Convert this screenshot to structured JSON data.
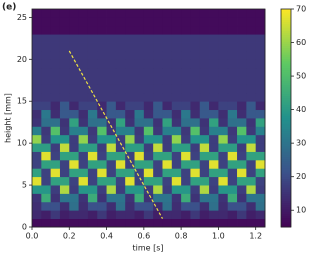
{
  "chart_data": {
    "type": "heatmap",
    "panel_label": "(e)",
    "xlabel": "time [s]",
    "ylabel": "height [mm]",
    "xlim": [
      0,
      1.25
    ],
    "ylim": [
      0,
      26
    ],
    "xticks": [
      {
        "value": 0,
        "label": "0.0"
      },
      {
        "value": 0.2,
        "label": "0.2"
      },
      {
        "value": 0.4,
        "label": "0.4"
      },
      {
        "value": 0.6,
        "label": "0.6"
      },
      {
        "value": 0.8,
        "label": "0.8"
      },
      {
        "value": 1.0,
        "label": "1.0"
      },
      {
        "value": 1.2,
        "label": "1.2"
      }
    ],
    "yticks": [
      0,
      5,
      10,
      15,
      20,
      25
    ],
    "clim": [
      5,
      70
    ],
    "cticks": [
      10,
      20,
      30,
      40,
      50,
      60,
      70
    ],
    "colormap": [
      "#440154",
      "#3b528b",
      "#21918c",
      "#5ec962",
      "#fde725"
    ],
    "xbins": [
      0,
      0.05,
      0.1,
      0.15,
      0.2,
      0.25,
      0.3,
      0.35,
      0.4,
      0.45,
      0.5,
      0.55,
      0.6,
      0.65,
      0.7,
      0.75,
      0.8,
      0.85,
      0.9,
      0.95,
      1.0,
      1.05,
      1.1,
      1.15,
      1.2,
      1.25
    ],
    "ybins": [
      0,
      1,
      2,
      3,
      4,
      5,
      6,
      7,
      8,
      9,
      10,
      11,
      12,
      13,
      14,
      15,
      16,
      17,
      18,
      19,
      20,
      21,
      22,
      23,
      24,
      25,
      26
    ],
    "z": [
      [
        7,
        7,
        7,
        7,
        7,
        7,
        7,
        7,
        7,
        7,
        7,
        7,
        7,
        7,
        7,
        7,
        7,
        7,
        7,
        7,
        7,
        7,
        7,
        7,
        7
      ],
      [
        13,
        11,
        16,
        11,
        13,
        13,
        11,
        16,
        11,
        13,
        13,
        11,
        16,
        11,
        13,
        13,
        11,
        16,
        11,
        13,
        13,
        11,
        16,
        11,
        13
      ],
      [
        14,
        21,
        21,
        14,
        29,
        14,
        21,
        21,
        14,
        29,
        14,
        21,
        21,
        14,
        29,
        14,
        21,
        21,
        14,
        29,
        14,
        21,
        21,
        14,
        29
      ],
      [
        15,
        45,
        15,
        30,
        30,
        15,
        45,
        15,
        30,
        30,
        15,
        45,
        15,
        30,
        30,
        15,
        45,
        15,
        30,
        30,
        15,
        45,
        15,
        30,
        30
      ],
      [
        39,
        39,
        17,
        62,
        17,
        39,
        39,
        17,
        62,
        17,
        39,
        39,
        17,
        62,
        17,
        39,
        39,
        17,
        62,
        17,
        39,
        39,
        17,
        62,
        17
      ],
      [
        67,
        18,
        42,
        42,
        18,
        67,
        18,
        42,
        42,
        18,
        67,
        18,
        42,
        42,
        18,
        67,
        18,
        42,
        42,
        18,
        67,
        18,
        42,
        42,
        18
      ],
      [
        42,
        18,
        67,
        18,
        42,
        42,
        18,
        67,
        18,
        42,
        42,
        18,
        67,
        18,
        42,
        42,
        18,
        67,
        18,
        42,
        42,
        18,
        67,
        18,
        42
      ],
      [
        18,
        42,
        42,
        18,
        67,
        18,
        42,
        42,
        18,
        67,
        18,
        42,
        42,
        18,
        67,
        18,
        42,
        42,
        18,
        67,
        18,
        42,
        42,
        18,
        67
      ],
      [
        18,
        67,
        18,
        42,
        42,
        18,
        67,
        18,
        42,
        42,
        18,
        67,
        18,
        42,
        42,
        18,
        67,
        18,
        42,
        42,
        18,
        67,
        18,
        42,
        42
      ],
      [
        41,
        41,
        17,
        64,
        17,
        41,
        41,
        17,
        64,
        17,
        41,
        41,
        17,
        64,
        17,
        41,
        41,
        17,
        64,
        17,
        41,
        41,
        17,
        64,
        17
      ],
      [
        59,
        17,
        38,
        38,
        17,
        59,
        17,
        38,
        38,
        17,
        59,
        17,
        38,
        38,
        17,
        59,
        17,
        38,
        38,
        17,
        59,
        17,
        38,
        38,
        17
      ],
      [
        33,
        16,
        51,
        16,
        33,
        33,
        16,
        51,
        16,
        33,
        33,
        16,
        51,
        16,
        33,
        33,
        16,
        51,
        16,
        33,
        33,
        16,
        51,
        16,
        33
      ],
      [
        15,
        29,
        29,
        15,
        42,
        15,
        29,
        29,
        15,
        42,
        15,
        29,
        29,
        15,
        42,
        15,
        29,
        29,
        15,
        42,
        15,
        29,
        29,
        15,
        42
      ],
      [
        14,
        31,
        14,
        23,
        23,
        14,
        31,
        14,
        23,
        23,
        14,
        31,
        14,
        23,
        23,
        14,
        31,
        14,
        23,
        23,
        14,
        31,
        14,
        23,
        23
      ],
      [
        18,
        18,
        13,
        23,
        13,
        18,
        18,
        13,
        23,
        13,
        18,
        18,
        13,
        23,
        13,
        18,
        18,
        13,
        23,
        13,
        18,
        18,
        13,
        23,
        13
      ],
      [
        16,
        16,
        16,
        16,
        16,
        16,
        16,
        16,
        16,
        16,
        16,
        16,
        16,
        16,
        16,
        16,
        16,
        16,
        16,
        16,
        16,
        16,
        16,
        16,
        16
      ],
      [
        16,
        16,
        16,
        16,
        16,
        16,
        16,
        16,
        16,
        16,
        16,
        16,
        16,
        16,
        16,
        16,
        16,
        16,
        16,
        16,
        16,
        16,
        16,
        16,
        16
      ],
      [
        16,
        16,
        16,
        16,
        16,
        16,
        16,
        16,
        16,
        16,
        16,
        16,
        16,
        16,
        16,
        16,
        16,
        16,
        16,
        16,
        16,
        16,
        16,
        16,
        16
      ],
      [
        16,
        16,
        16,
        16,
        16,
        16,
        16,
        16,
        16,
        16,
        16,
        16,
        16,
        16,
        16,
        16,
        16,
        16,
        16,
        16,
        16,
        16,
        16,
        16,
        16
      ],
      [
        16,
        16,
        16,
        16,
        16,
        16,
        16,
        16,
        16,
        16,
        16,
        16,
        16,
        16,
        16,
        16,
        16,
        16,
        16,
        16,
        16,
        16,
        16,
        16,
        16
      ],
      [
        16,
        16,
        16,
        16,
        16,
        16,
        16,
        16,
        16,
        16,
        16,
        16,
        16,
        16,
        16,
        16,
        16,
        16,
        16,
        16,
        16,
        16,
        16,
        16,
        16
      ],
      [
        16,
        16,
        16,
        16,
        16,
        16,
        16,
        16,
        16,
        16,
        16,
        16,
        16,
        16,
        16,
        16,
        16,
        16,
        16,
        16,
        16,
        16,
        16,
        16,
        16
      ],
      [
        16,
        16,
        16,
        16,
        16,
        16,
        16,
        16,
        16,
        16,
        16,
        16,
        16,
        16,
        16,
        16,
        16,
        16,
        16,
        16,
        16,
        16,
        16,
        16,
        16
      ],
      [
        7,
        7,
        7,
        7,
        7,
        7,
        7,
        7,
        7,
        7,
        7,
        7,
        7,
        7,
        7,
        7,
        7,
        7,
        7,
        7,
        7,
        7,
        7,
        7,
        7
      ],
      [
        7,
        7,
        7,
        7,
        7,
        7,
        7,
        7,
        7,
        7,
        7,
        7,
        7,
        7,
        7,
        7,
        7,
        7,
        7,
        7,
        7,
        7,
        7,
        7,
        7
      ],
      [
        7,
        7,
        7,
        7,
        7,
        7,
        7,
        7,
        7,
        7,
        7,
        7,
        7,
        7,
        7,
        7,
        7,
        7,
        7,
        7,
        7,
        7,
        7,
        7,
        7
      ]
    ],
    "annotation_line": {
      "x": [
        0.2,
        0.7
      ],
      "y": [
        21,
        1
      ],
      "color": "#f0e442"
    }
  }
}
